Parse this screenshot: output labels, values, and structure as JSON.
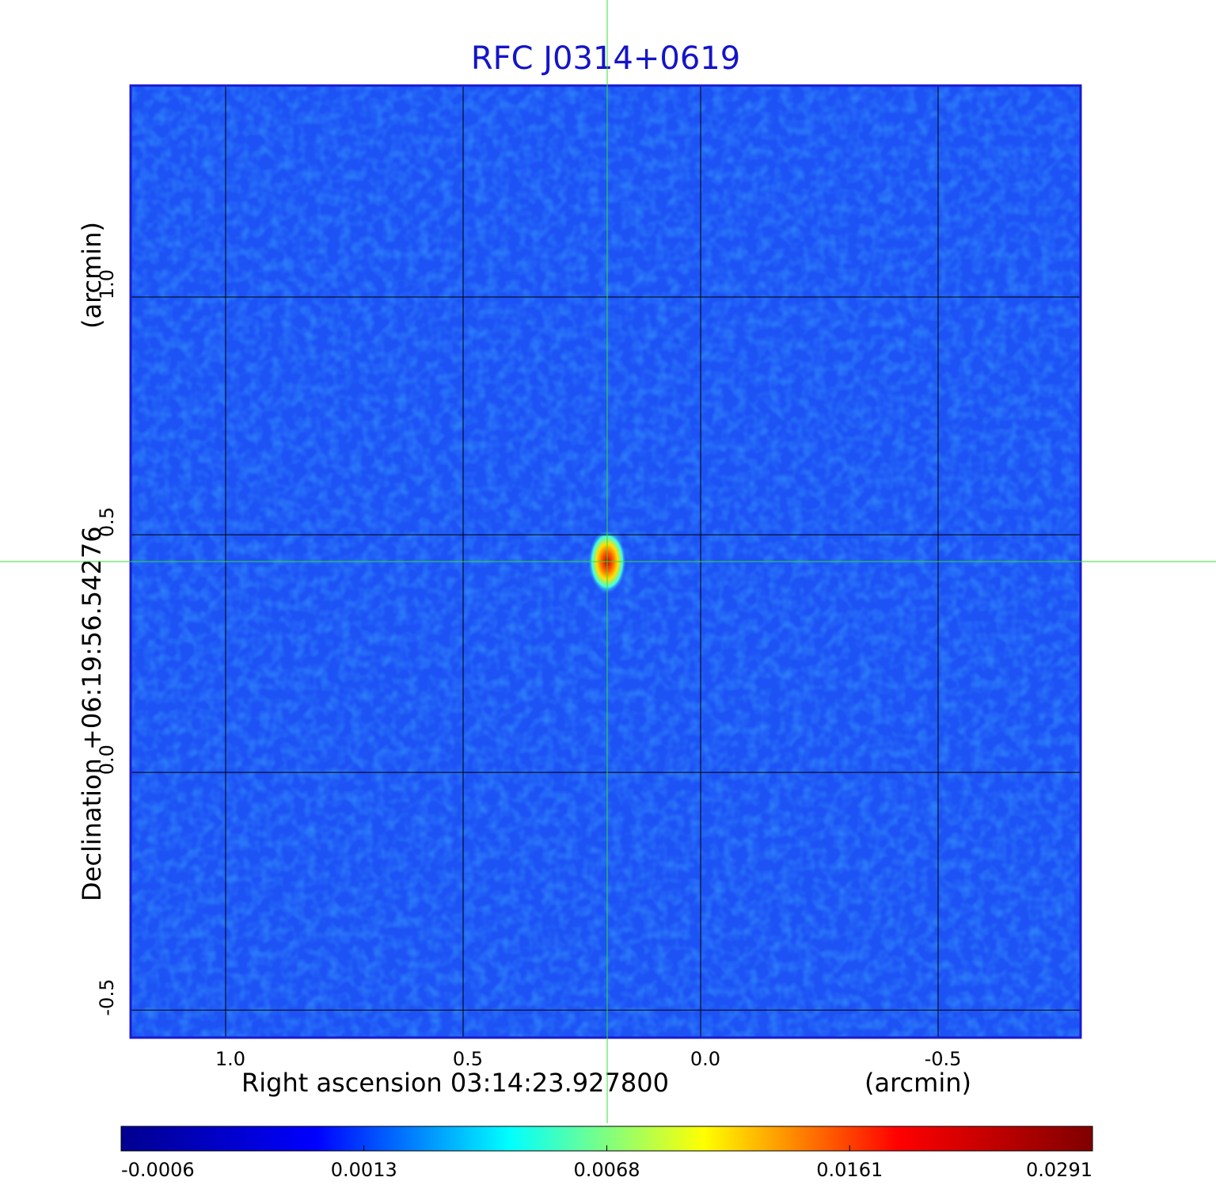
{
  "chart_data": {
    "type": "image",
    "title": "RFC J0314+0619",
    "x_label": "Right ascension  03:14:23.927800",
    "x_unit": "(arcmin)",
    "y_label": "Declination  +06:19:56.54276",
    "y_unit": "(arcmin)",
    "xlim": [
      1.2,
      -0.8
    ],
    "ylim": [
      -0.558,
      1.445
    ],
    "xticks": [
      {
        "value": 1,
        "label": "1.0"
      },
      0.5,
      {
        "value": 0,
        "label": "0.0"
      },
      -0.5
    ],
    "yticks": [
      -0.5,
      {
        "value": 0,
        "label": "0.0"
      },
      0.5,
      {
        "value": 1,
        "label": "1.0"
      }
    ],
    "grid": true,
    "colorbar": {
      "ticks": [
        -0.0006,
        0.0013,
        0.0068,
        0.0161,
        0.0291
      ],
      "colors": [
        "#00008f",
        "#0000ff",
        "#00ffff",
        "#ffff00",
        "#ff0000",
        "#800000"
      ]
    }
  }
}
